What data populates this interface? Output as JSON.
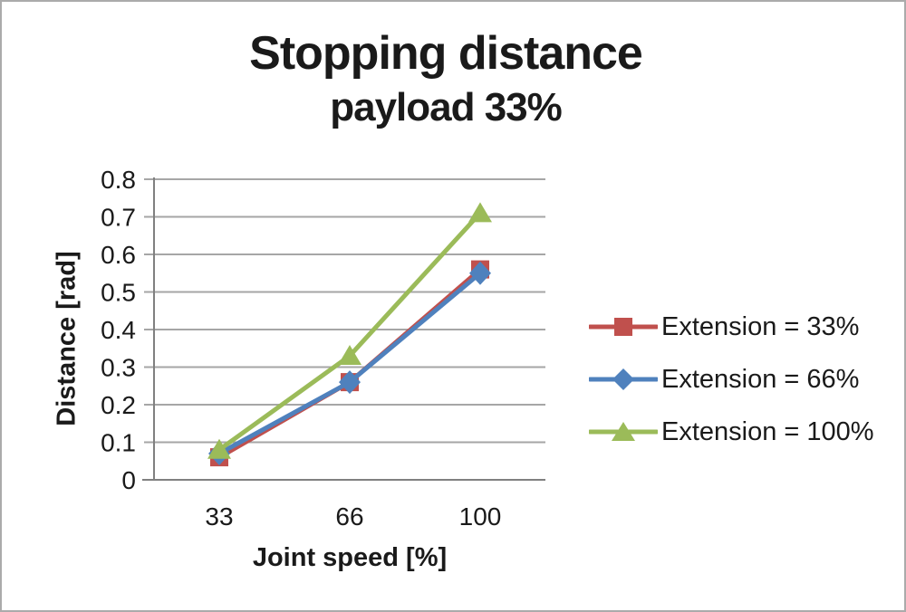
{
  "chart_data": {
    "type": "line",
    "title": "Stopping distance",
    "subtitle": "payload 33%",
    "xlabel": "Joint speed [%]",
    "ylabel": "Distance [rad]",
    "categories": [
      "33",
      "66",
      "100"
    ],
    "series": [
      {
        "name": "Extension = 33%",
        "color": "#C0504D",
        "marker": "square",
        "values": [
          0.06,
          0.26,
          0.56
        ]
      },
      {
        "name": "Extension = 66%",
        "color": "#4F81BD",
        "marker": "diamond",
        "values": [
          0.07,
          0.26,
          0.55
        ]
      },
      {
        "name": "Extension = 100%",
        "color": "#9BBB59",
        "marker": "triangle",
        "values": [
          0.08,
          0.33,
          0.71
        ]
      }
    ],
    "ylim": [
      0,
      0.8
    ],
    "ytick_step": 0.1,
    "ytick_labels": [
      "0",
      "0.1",
      "0.2",
      "0.3",
      "0.4",
      "0.5",
      "0.6",
      "0.7",
      "0.8"
    ],
    "grid": true,
    "legend_position": "right"
  },
  "colors": {
    "background": "#FFFFFF",
    "frame_border": "#ABABAB",
    "gridline": "#A6A6A6",
    "axis_line": "#808080",
    "text": "#1A1A1A"
  }
}
